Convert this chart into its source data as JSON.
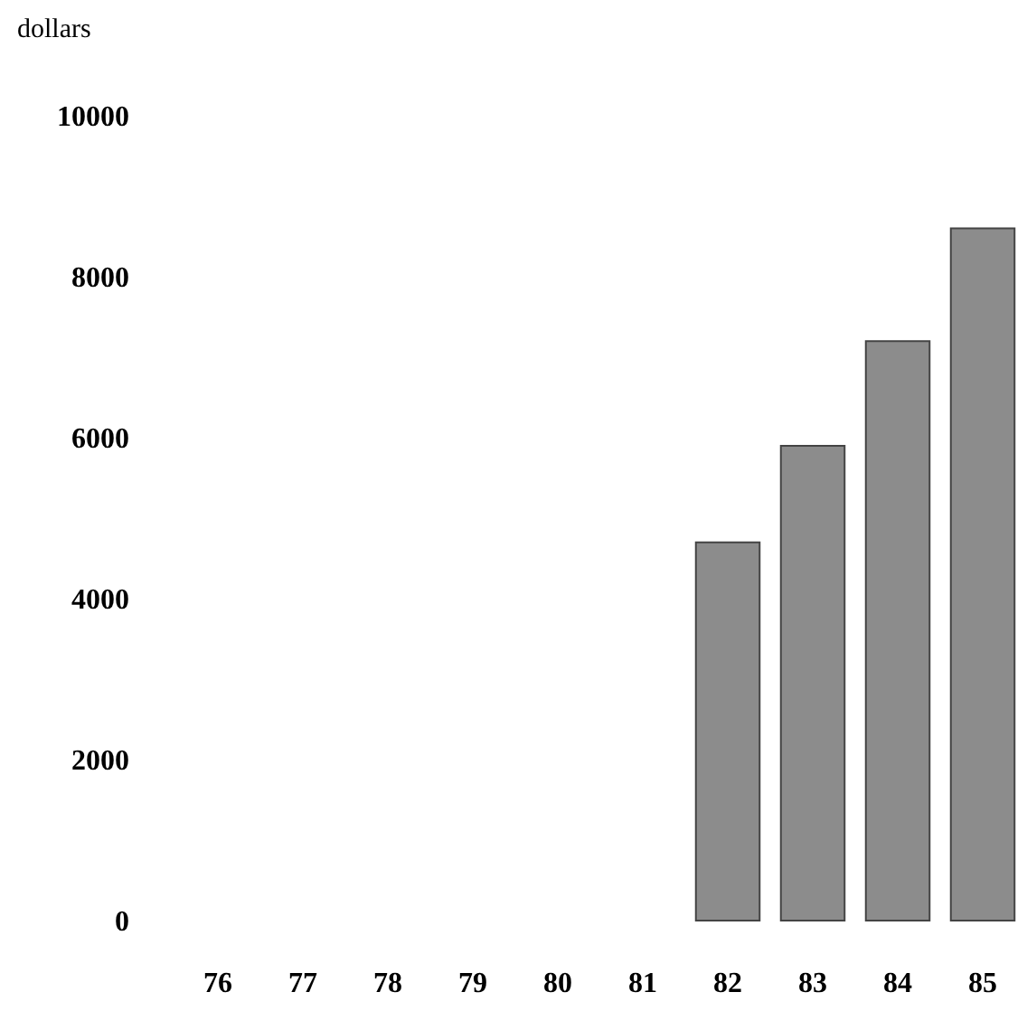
{
  "chart_data": {
    "type": "bar",
    "ylabel": "dollars",
    "categories": [
      "76",
      "77",
      "78",
      "79",
      "80",
      "81",
      "82",
      "83",
      "84",
      "85"
    ],
    "values": [
      null,
      null,
      null,
      null,
      null,
      null,
      4700,
      5900,
      7200,
      8600
    ],
    "color": "#8c8c8c",
    "ylim": [
      0,
      10000
    ],
    "yticks": [
      0,
      2000,
      4000,
      6000,
      8000,
      10000
    ],
    "grid": false
  }
}
